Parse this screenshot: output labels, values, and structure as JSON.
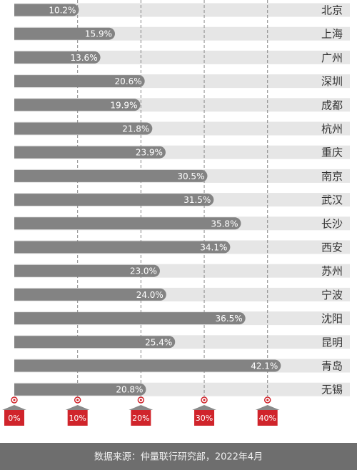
{
  "chart_data": {
    "type": "bar",
    "orientation": "horizontal",
    "categories": [
      "北京",
      "上海",
      "广州",
      "深圳",
      "成都",
      "杭州",
      "重庆",
      "南京",
      "武汉",
      "长沙",
      "西安",
      "苏州",
      "宁波",
      "沈阳",
      "昆明",
      "青岛",
      "无锡"
    ],
    "values": [
      10.2,
      15.9,
      13.6,
      20.6,
      19.9,
      21.8,
      23.9,
      30.5,
      31.5,
      35.8,
      34.1,
      23.0,
      24.0,
      36.5,
      25.4,
      42.1,
      20.8
    ],
    "value_labels": [
      "10.2%",
      "15.9%",
      "13.6%",
      "20.6%",
      "19.9%",
      "21.8%",
      "23.9%",
      "30.5%",
      "31.5%",
      "35.8%",
      "34.1%",
      "23.0%",
      "24.0%",
      "36.5%",
      "25.4%",
      "42.1%",
      "20.8%"
    ],
    "color": "#838383",
    "xlim": [
      0,
      53
    ],
    "xticks": [
      {
        "value": 0,
        "label": "0%"
      },
      {
        "value": 10,
        "label": "10%"
      },
      {
        "value": 20,
        "label": "20%"
      },
      {
        "value": 30,
        "label": "30%"
      },
      {
        "value": 40,
        "label": "40%"
      }
    ],
    "grid": true,
    "source": "数据来源：仲量联行研究部，2022年4月"
  }
}
